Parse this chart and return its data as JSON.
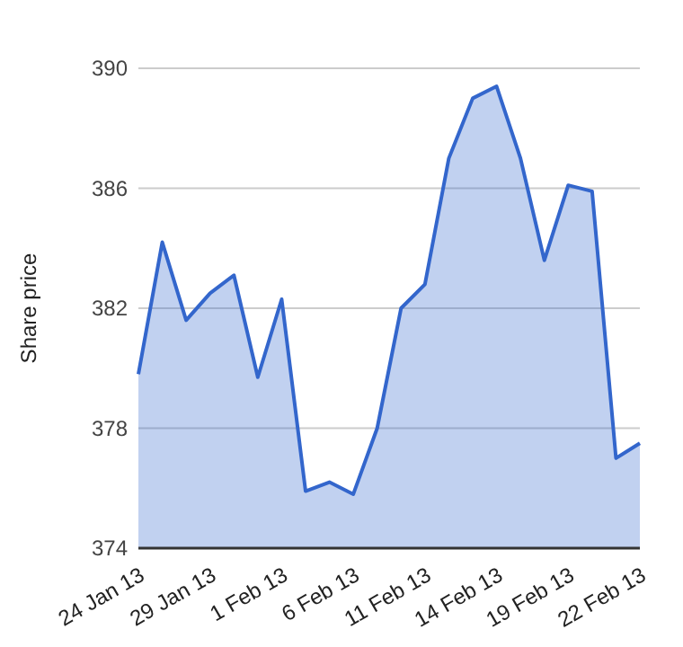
{
  "chart_data": {
    "type": "area",
    "ylabel": "Share price",
    "categories": [
      "24 Jan 13",
      null,
      null,
      "29 Jan 13",
      null,
      null,
      "1 Feb 13",
      null,
      null,
      "6 Feb 13",
      null,
      null,
      "11 Feb 13",
      null,
      null,
      "14 Feb 13",
      null,
      null,
      "19 Feb 13",
      null,
      null,
      "22 Feb 13"
    ],
    "series": [
      {
        "color": "#3366cc",
        "values": [
          379.8,
          384.2,
          381.6,
          382.5,
          383.1,
          379.7,
          382.3,
          375.9,
          376.2,
          375.8,
          378.0,
          382.0,
          382.8,
          387.0,
          389.0,
          389.4,
          387.0,
          383.6,
          386.1,
          385.9,
          377.0,
          377.5
        ]
      }
    ],
    "ylim": [
      374,
      390
    ],
    "yticks": [
      374,
      378,
      382,
      386,
      390
    ],
    "grid": "y"
  }
}
